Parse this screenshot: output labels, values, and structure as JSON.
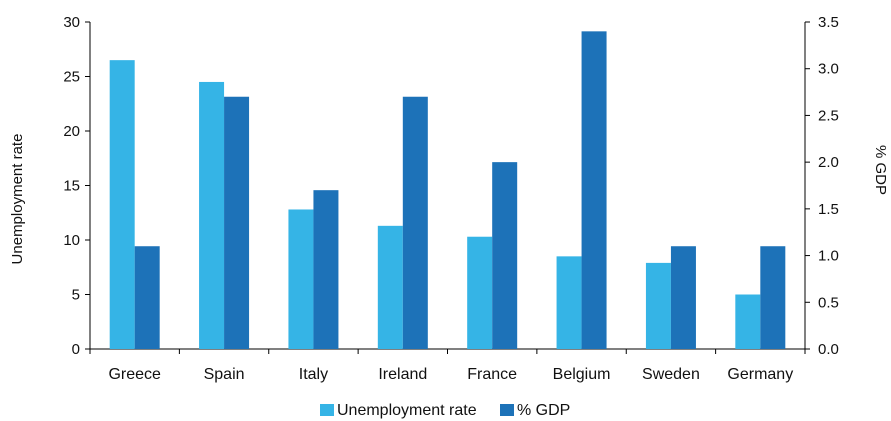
{
  "chart_data": {
    "type": "bar",
    "categories": [
      "Greece",
      "Spain",
      "Italy",
      "Ireland",
      "France",
      "Belgium",
      "Sweden",
      "Germany"
    ],
    "series": [
      {
        "name": "Unemployment rate",
        "axis": "left",
        "color": "#35b4e6",
        "values": [
          26.5,
          24.5,
          12.8,
          11.3,
          10.3,
          8.5,
          7.9,
          5.0
        ]
      },
      {
        "name": "% GDP",
        "axis": "right",
        "color": "#1d72b8",
        "values": [
          1.1,
          2.7,
          1.7,
          2.7,
          2.0,
          3.4,
          1.1,
          1.1
        ]
      }
    ],
    "ylabel": "Unemployment rate",
    "y2label": "% GDP",
    "ylim": [
      0,
      30
    ],
    "y2lim": [
      0,
      3.5
    ],
    "yticks": [
      "0",
      "5",
      "10",
      "15",
      "20",
      "25",
      "30"
    ],
    "y2ticks": [
      "0.0",
      "0.5",
      "1.0",
      "1.5",
      "2.0",
      "2.5",
      "3.0",
      "3.5"
    ],
    "grid": false,
    "legend": "bottom"
  }
}
